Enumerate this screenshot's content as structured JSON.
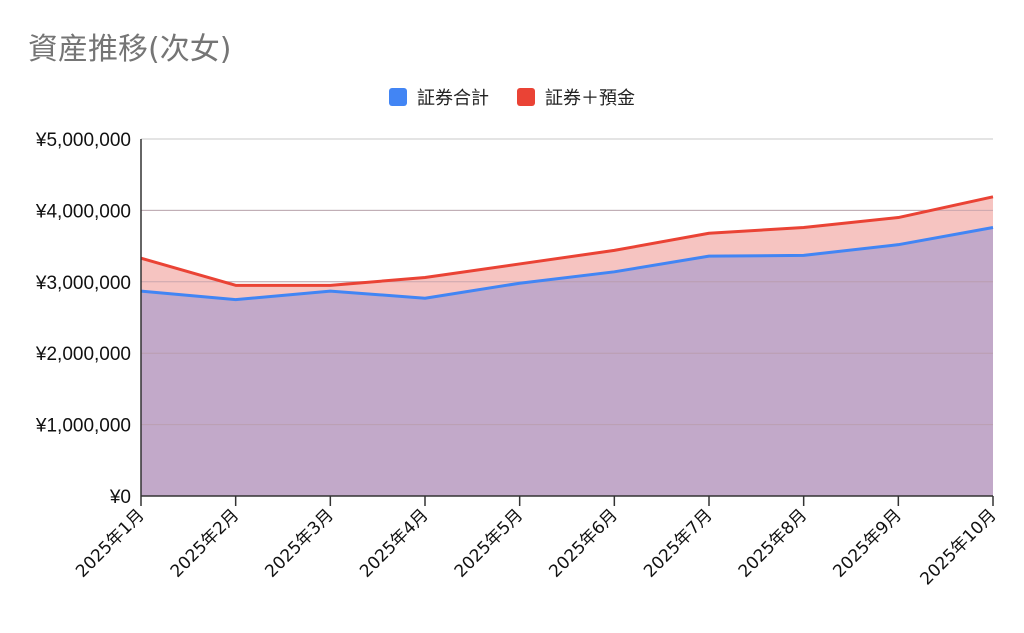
{
  "chart_data": {
    "type": "area",
    "title": "資産推移(次女)",
    "categories": [
      "2025年1月",
      "2025年2月",
      "2025年3月",
      "2025年4月",
      "2025年5月",
      "2025年6月",
      "2025年7月",
      "2025年8月",
      "2025年9月",
      "2025年10月"
    ],
    "series": [
      {
        "name": "証券合計",
        "color": "#4285f4",
        "fill": "#c2a9c9",
        "values": [
          2870000,
          2750000,
          2870000,
          2770000,
          2980000,
          3140000,
          3360000,
          3370000,
          3520000,
          3760000
        ]
      },
      {
        "name": "証券＋預金",
        "color": "#ea4335",
        "fill": "#f6c4c1",
        "values": [
          3330000,
          2950000,
          2950000,
          3060000,
          3250000,
          3440000,
          3680000,
          3760000,
          3900000,
          4190000
        ]
      }
    ],
    "yticks": [
      "¥0",
      "¥1,000,000",
      "¥2,000,000",
      "¥3,000,000",
      "¥4,000,000",
      "¥5,000,000"
    ],
    "ylim": [
      0,
      5000000
    ],
    "grid": true,
    "legend_position": "top-center"
  }
}
